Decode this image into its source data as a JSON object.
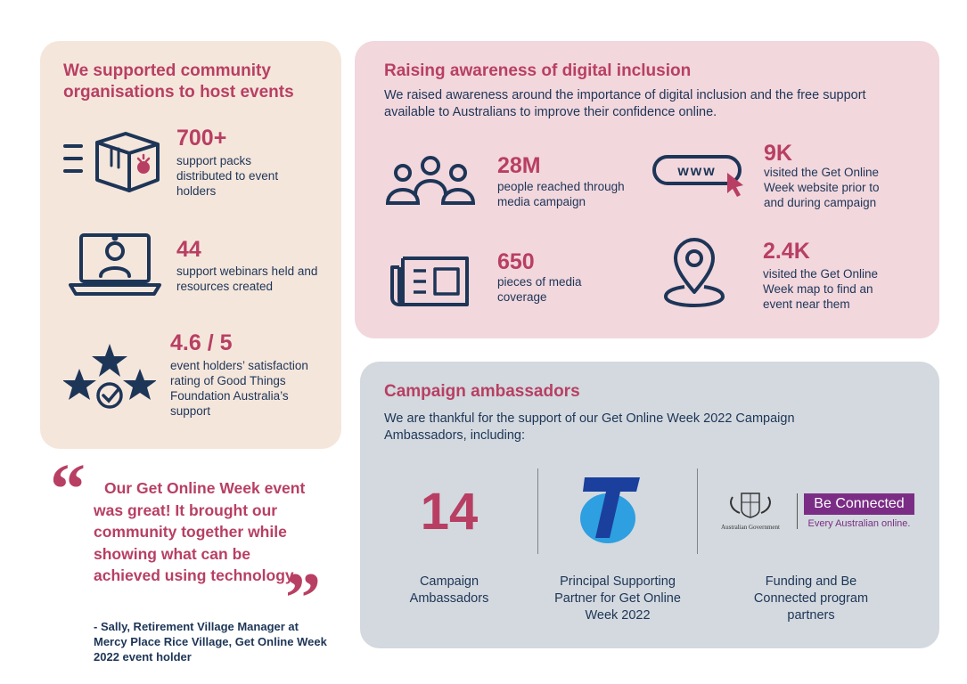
{
  "events": {
    "heading": "We supported community organisations to host events",
    "stats": [
      {
        "value": "700+",
        "text": "support packs distributed to event holders",
        "icon": "box-icon"
      },
      {
        "value": "44",
        "text": "support webinars held and resources created",
        "icon": "laptop-user-icon"
      },
      {
        "value": "4.6 / 5",
        "text": "event holders’ satisfaction rating of Good Things Foundation Australia’s support",
        "icon": "stars-icon"
      }
    ]
  },
  "quote": {
    "text": "Our Get Online Week event was great! It brought our community together while showing what can be achieved using technology.",
    "open_mark": "“",
    "close_mark": "”",
    "attribution": "- Sally, Retirement Village Manager at Mercy Place Rice Village, Get Online Week 2022 event holder"
  },
  "awareness": {
    "heading": "Raising awareness of digital inclusion",
    "intro": "We raised awareness around the importance of digital inclusion and the free support available to Australians to improve their confidence online.",
    "stats": [
      {
        "value": "28M",
        "text": "people reached through media campaign",
        "icon": "people-group-icon"
      },
      {
        "value": "9K",
        "text": "visited the Get Online Week website prior to and during campaign",
        "icon": "www-cursor-icon",
        "icon_label": "www"
      },
      {
        "value": "650",
        "text": "pieces of media coverage",
        "icon": "newspaper-icon"
      },
      {
        "value": "2.4K",
        "text": "visited the Get Online Week map to find an event near them",
        "icon": "map-pin-icon"
      }
    ]
  },
  "ambassadors": {
    "heading": "Campaign ambassadors",
    "intro": "We are thankful for the support of our Get Online Week 2022 Campaign Ambassadors, including:",
    "count": "14",
    "count_label": "Campaign Ambassadors",
    "telstra_label": "Principal Supporting Partner for Get Online Week 2022",
    "funding_label": "Funding and Be Connected program partners",
    "gov_text": "Australian Government",
    "be_connected_title": "Be Connected",
    "be_connected_tagline": "Every Australian online."
  },
  "colors": {
    "accent": "#b83f63",
    "navy": "#1d3557",
    "beige": "#f5e6dc",
    "pink": "#f2d7dd",
    "grey": "#d3d9de",
    "purple": "#7b2d86"
  }
}
